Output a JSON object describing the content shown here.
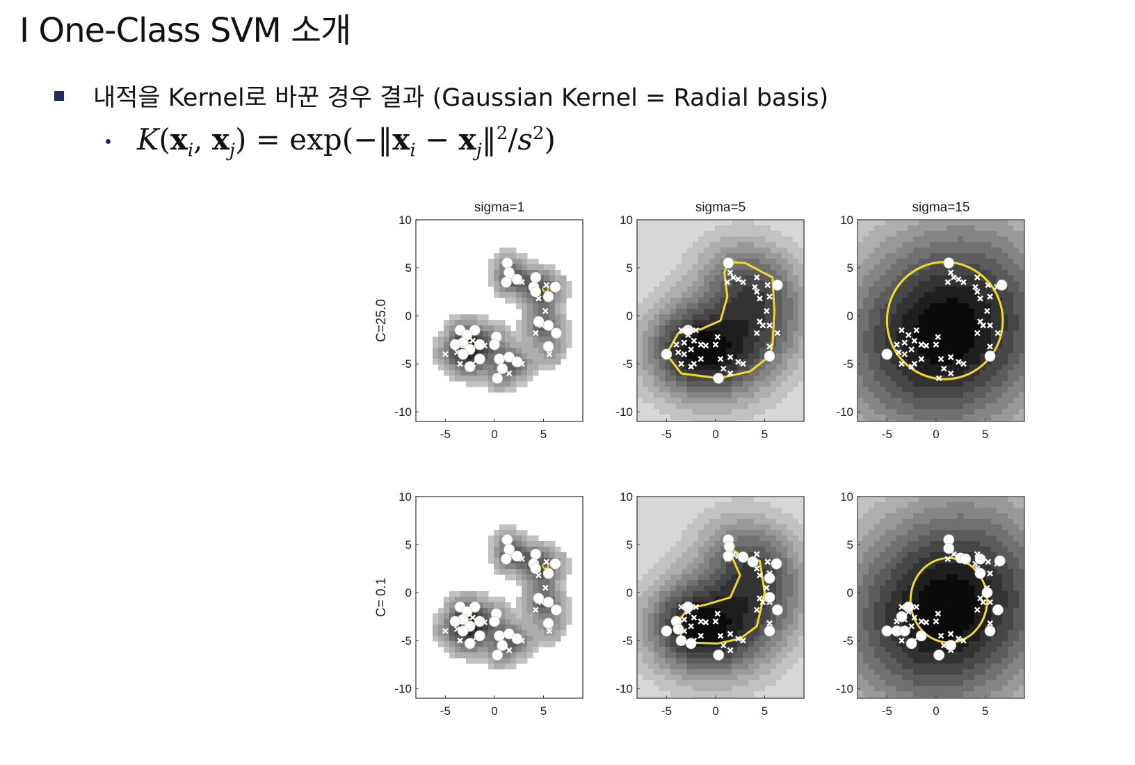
{
  "slide": {
    "title": "I One-Class SVM 소개",
    "bullet_text": "내적을 Kernel로 바꾼 경우 결과 (Gaussian Kernel = Radial basis)",
    "formula": {
      "K": "K",
      "x": "x",
      "i": "i",
      "j": "j",
      "eq": "=",
      "exp": "exp",
      "s": "s",
      "two": "2"
    }
  },
  "chart_data": {
    "type": "contour",
    "column_titles": [
      "sigma=1",
      "sigma=5",
      "sigma=15"
    ],
    "row_labels": [
      "C=25.0",
      "C= 0.1"
    ],
    "xlim": [
      -8,
      9
    ],
    "ylim": [
      -11,
      10
    ],
    "x_ticks": [
      -5,
      0,
      5
    ],
    "y_ticks": [
      10,
      5,
      0,
      -5,
      -10
    ],
    "colors": {
      "boundary": "#f0dc28",
      "support_vector": "#ffffff",
      "point_marker": "#ffffff"
    },
    "points": [
      [
        1.3,
        5.5
      ],
      [
        1.5,
        4.5
      ],
      [
        1.2,
        3.5
      ],
      [
        1.8,
        4.0
      ],
      [
        2.3,
        3.8
      ],
      [
        2.8,
        3.5
      ],
      [
        4.2,
        4.0
      ],
      [
        4.0,
        3.0
      ],
      [
        5.3,
        3.2
      ],
      [
        6.2,
        3.0
      ],
      [
        4.2,
        2.5
      ],
      [
        4.5,
        1.8
      ],
      [
        5.5,
        2.0
      ],
      [
        5.2,
        0.5
      ],
      [
        4.5,
        -0.6
      ],
      [
        4.8,
        -1.0
      ],
      [
        5.5,
        -1.0
      ],
      [
        4.2,
        -1.8
      ],
      [
        6.3,
        -1.8
      ],
      [
        5.5,
        -3.2
      ],
      [
        5.6,
        -4.0
      ],
      [
        -3.5,
        -1.5
      ],
      [
        -2.0,
        -1.5
      ],
      [
        -2.8,
        -2.0
      ],
      [
        -2.2,
        -2.6
      ],
      [
        -3.2,
        -2.8
      ],
      [
        -4.0,
        -3.0
      ],
      [
        -2.5,
        -3.5
      ],
      [
        -1.5,
        -3.0
      ],
      [
        -1.0,
        -3.1
      ],
      [
        0.2,
        -2.2
      ],
      [
        0.0,
        -3.0
      ],
      [
        -3.8,
        -3.8
      ],
      [
        -3.2,
        -4.0
      ],
      [
        -1.5,
        -4.5
      ],
      [
        -3.5,
        -5.0
      ],
      [
        0.5,
        -4.5
      ],
      [
        1.5,
        -4.3
      ],
      [
        2.3,
        -4.8
      ],
      [
        -2.5,
        -5.3
      ],
      [
        0.8,
        -5.5
      ],
      [
        2.8,
        -5.0
      ],
      [
        1.5,
        -6.0
      ],
      [
        0.3,
        -6.5
      ],
      [
        -5.0,
        -4.0
      ],
      [
        -2.2,
        -5.0
      ]
    ],
    "panels": [
      {
        "row": 0,
        "col": 0,
        "sigma": 1,
        "C": 25.0,
        "support_vectors": [
          [
            1.3,
            5.5
          ],
          [
            1.5,
            4.5
          ],
          [
            1.2,
            3.5
          ],
          [
            2.3,
            3.8
          ],
          [
            4.2,
            4.0
          ],
          [
            4.0,
            3.0
          ],
          [
            6.2,
            3.0
          ],
          [
            4.2,
            2.5
          ],
          [
            5.5,
            2.0
          ],
          [
            4.5,
            -0.6
          ],
          [
            5.5,
            -1.0
          ],
          [
            6.3,
            -1.8
          ],
          [
            5.5,
            -3.2
          ],
          [
            -3.5,
            -1.5
          ],
          [
            -2.0,
            -1.5
          ],
          [
            -2.8,
            -2.0
          ],
          [
            -3.2,
            -2.8
          ],
          [
            -4.0,
            -3.0
          ],
          [
            -2.5,
            -3.5
          ],
          [
            -1.5,
            -3.0
          ],
          [
            0.2,
            -2.2
          ],
          [
            0.0,
            -3.0
          ],
          [
            -3.2,
            -4.0
          ],
          [
            -1.5,
            -4.5
          ],
          [
            -2.5,
            -5.3
          ],
          [
            0.5,
            -4.5
          ],
          [
            1.5,
            -4.3
          ],
          [
            2.3,
            -4.8
          ],
          [
            0.8,
            -5.5
          ],
          [
            0.3,
            -6.5
          ]
        ]
      },
      {
        "row": 0,
        "col": 1,
        "sigma": 5,
        "C": 25.0,
        "support_vectors": [
          [
            1.3,
            5.5
          ],
          [
            6.3,
            3.2
          ],
          [
            -2.8,
            -1.5
          ],
          [
            -5.0,
            -4.0
          ],
          [
            5.5,
            -4.2
          ],
          [
            0.3,
            -6.5
          ]
        ]
      },
      {
        "row": 0,
        "col": 2,
        "sigma": 15,
        "C": 25.0,
        "support_vectors": [
          [
            1.3,
            5.5
          ],
          [
            6.7,
            3.2
          ],
          [
            -5.0,
            -4.0
          ],
          [
            5.5,
            -4.2
          ]
        ]
      },
      {
        "row": 1,
        "col": 0,
        "sigma": 1,
        "C": 0.1,
        "support_vectors": [
          [
            1.3,
            5.5
          ],
          [
            1.5,
            4.5
          ],
          [
            1.2,
            3.5
          ],
          [
            2.3,
            3.8
          ],
          [
            4.2,
            4.0
          ],
          [
            4.0,
            3.0
          ],
          [
            6.2,
            3.0
          ],
          [
            4.2,
            2.5
          ],
          [
            5.5,
            2.0
          ],
          [
            4.5,
            -0.6
          ],
          [
            5.5,
            -1.0
          ],
          [
            6.3,
            -1.8
          ],
          [
            5.5,
            -3.2
          ],
          [
            -3.5,
            -1.5
          ],
          [
            -2.0,
            -1.5
          ],
          [
            -2.8,
            -2.0
          ],
          [
            -3.2,
            -2.8
          ],
          [
            -4.0,
            -3.0
          ],
          [
            -2.5,
            -3.5
          ],
          [
            -1.5,
            -3.0
          ],
          [
            0.2,
            -2.2
          ],
          [
            0.0,
            -3.0
          ],
          [
            -3.2,
            -4.0
          ],
          [
            -1.5,
            -4.5
          ],
          [
            -2.5,
            -5.3
          ],
          [
            0.5,
            -4.5
          ],
          [
            1.5,
            -4.3
          ],
          [
            2.3,
            -4.8
          ],
          [
            0.8,
            -5.5
          ],
          [
            0.3,
            -6.5
          ]
        ]
      },
      {
        "row": 1,
        "col": 1,
        "sigma": 5,
        "C": 0.1,
        "support_vectors": [
          [
            1.3,
            5.5
          ],
          [
            1.4,
            4.8
          ],
          [
            1.3,
            3.8
          ],
          [
            2.8,
            3.7
          ],
          [
            3.8,
            3.2
          ],
          [
            6.2,
            3.0
          ],
          [
            5.5,
            1.5
          ],
          [
            5.5,
            -0.5
          ],
          [
            6.3,
            -1.8
          ],
          [
            5.5,
            -4.0
          ],
          [
            -2.8,
            -1.5
          ],
          [
            -4.0,
            -3.0
          ],
          [
            -5.0,
            -4.0
          ],
          [
            -3.8,
            -3.8
          ],
          [
            -3.5,
            -5.0
          ],
          [
            -2.5,
            -5.3
          ],
          [
            0.3,
            -6.5
          ]
        ]
      },
      {
        "row": 1,
        "col": 2,
        "sigma": 15,
        "C": 0.1,
        "support_vectors": [
          [
            1.3,
            5.5
          ],
          [
            1.3,
            4.6
          ],
          [
            2.5,
            3.6
          ],
          [
            3.0,
            3.5
          ],
          [
            4.5,
            3.5
          ],
          [
            6.5,
            3.3
          ],
          [
            4.5,
            2.0
          ],
          [
            5.2,
            0.0
          ],
          [
            6.3,
            -1.8
          ],
          [
            5.5,
            -4.0
          ],
          [
            -2.8,
            -1.5
          ],
          [
            -3.5,
            -2.5
          ],
          [
            -5.0,
            -4.0
          ],
          [
            -4.0,
            -4.0
          ],
          [
            -3.2,
            -4.0
          ],
          [
            -2.5,
            -5.3
          ],
          [
            -1.5,
            -4.5
          ],
          [
            0.3,
            -6.5
          ],
          [
            1.5,
            -5.5
          ]
        ]
      }
    ]
  }
}
